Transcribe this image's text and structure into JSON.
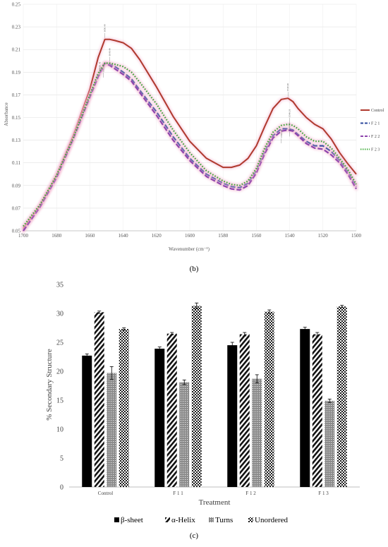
{
  "panel_b_label": "(b)",
  "panel_c_label": "(c)",
  "chart_data": [
    {
      "type": "line",
      "xlabel": "Wavenumber (cm⁻¹)",
      "ylabel": "Absorbance",
      "xlim": [
        1700,
        1500
      ],
      "ylim": [
        0.05,
        0.25
      ],
      "x_reversed": true,
      "grid": true,
      "legend_position": "right",
      "x_ticks": [
        1700,
        1680,
        1660,
        1640,
        1620,
        1600,
        1580,
        1560,
        1540,
        1520,
        1500
      ],
      "y_ticks": [
        "0.05",
        "0.07",
        "0.09",
        "0.11",
        "0.13",
        "0.15",
        "0.17",
        "0.19",
        "0.21",
        "0.23",
        "0.25"
      ],
      "x": [
        1700,
        1690,
        1680,
        1670,
        1660,
        1655,
        1651,
        1648,
        1645,
        1640,
        1635,
        1630,
        1620,
        1610,
        1600,
        1590,
        1580,
        1575,
        1570,
        1565,
        1560,
        1555,
        1550,
        1545,
        1541,
        1538,
        1535,
        1530,
        1525,
        1520,
        1515,
        1510,
        1505,
        1500
      ],
      "series": [
        {
          "name": "Control",
          "color": "#b03a2e",
          "dash": "solid",
          "values": [
            0.052,
            0.072,
            0.099,
            0.134,
            0.175,
            0.203,
            0.219,
            0.219,
            0.218,
            0.216,
            0.211,
            0.201,
            0.177,
            0.151,
            0.129,
            0.114,
            0.106,
            0.106,
            0.108,
            0.114,
            0.125,
            0.142,
            0.158,
            0.166,
            0.167,
            0.164,
            0.158,
            0.15,
            0.144,
            0.14,
            0.131,
            0.119,
            0.109,
            0.1
          ]
        },
        {
          "name": "F 2 1",
          "color": "#2e4a9e",
          "dash": "dash",
          "values": [
            0.05,
            0.071,
            0.097,
            0.131,
            0.169,
            0.187,
            0.198,
            0.197,
            0.195,
            0.19,
            0.184,
            0.174,
            0.155,
            0.133,
            0.114,
            0.1,
            0.092,
            0.089,
            0.088,
            0.092,
            0.103,
            0.12,
            0.134,
            0.14,
            0.14,
            0.139,
            0.135,
            0.129,
            0.125,
            0.125,
            0.12,
            0.112,
            0.102,
            0.089
          ]
        },
        {
          "name": "F 2 2",
          "color": "#8e44ad",
          "dash": "dash",
          "values": [
            0.05,
            0.071,
            0.097,
            0.131,
            0.168,
            0.186,
            0.198,
            0.196,
            0.193,
            0.188,
            0.182,
            0.172,
            0.152,
            0.13,
            0.112,
            0.098,
            0.09,
            0.087,
            0.086,
            0.09,
            0.101,
            0.118,
            0.132,
            0.138,
            0.139,
            0.138,
            0.134,
            0.127,
            0.123,
            0.122,
            0.117,
            0.11,
            0.1,
            0.087
          ]
        },
        {
          "name": "F 2 3",
          "color": "#3aaa35",
          "dash": "dot",
          "values": [
            0.054,
            0.073,
            0.099,
            0.132,
            0.17,
            0.189,
            0.198,
            0.198,
            0.197,
            0.195,
            0.19,
            0.181,
            0.162,
            0.139,
            0.119,
            0.103,
            0.094,
            0.091,
            0.09,
            0.094,
            0.105,
            0.123,
            0.137,
            0.143,
            0.144,
            0.143,
            0.14,
            0.133,
            0.129,
            0.129,
            0.123,
            0.114,
            0.104,
            0.091
          ]
        }
      ],
      "peak_labels": [
        {
          "x": 1651,
          "y": 0.219,
          "text": "1650.48"
        },
        {
          "x": 1648,
          "y": 0.198,
          "text": "1648.40"
        },
        {
          "x": 1654,
          "y": 0.186,
          "text": "1650.41"
        },
        {
          "x": 1652,
          "y": 0.184,
          "text": "1652.97"
        },
        {
          "x": 1541,
          "y": 0.167,
          "text": "1540.46"
        },
        {
          "x": 1540,
          "y": 0.144,
          "text": "1540.31"
        },
        {
          "x": 1540,
          "y": 0.132,
          "text": "1540.14"
        },
        {
          "x": 1545,
          "y": 0.126,
          "text": "1544.20"
        }
      ]
    },
    {
      "type": "bar",
      "xlabel": "Treatment",
      "ylabel": "% Secondary Structure",
      "ylim": [
        0,
        35
      ],
      "grid": false,
      "legend_position": "bottom",
      "y_ticks": [
        "0",
        "5",
        "10",
        "15",
        "20",
        "25",
        "30",
        "35"
      ],
      "categories": [
        "Control",
        "F 1 1",
        "F 1 2",
        "F 1 3"
      ],
      "series": [
        {
          "name": "β-sheet",
          "pattern": "solid-black",
          "values": [
            22.7,
            23.9,
            24.5,
            27.3
          ],
          "errors": [
            0.3,
            0.3,
            0.5,
            0.3
          ]
        },
        {
          "name": "α-Helix",
          "pattern": "diagonal-stripes",
          "values": [
            30.2,
            26.5,
            26.4,
            26.4
          ],
          "errors": [
            0.2,
            0.2,
            0.3,
            0.3
          ]
        },
        {
          "name": "Turns",
          "pattern": "gray-dots",
          "values": [
            19.7,
            18.1,
            18.7,
            14.9
          ],
          "errors": [
            1.1,
            0.4,
            0.7,
            0.3
          ]
        },
        {
          "name": "Unordered",
          "pattern": "checker",
          "values": [
            27.3,
            31.3,
            30.3,
            31.2
          ],
          "errors": [
            0.2,
            0.5,
            0.3,
            0.2
          ]
        }
      ]
    }
  ]
}
